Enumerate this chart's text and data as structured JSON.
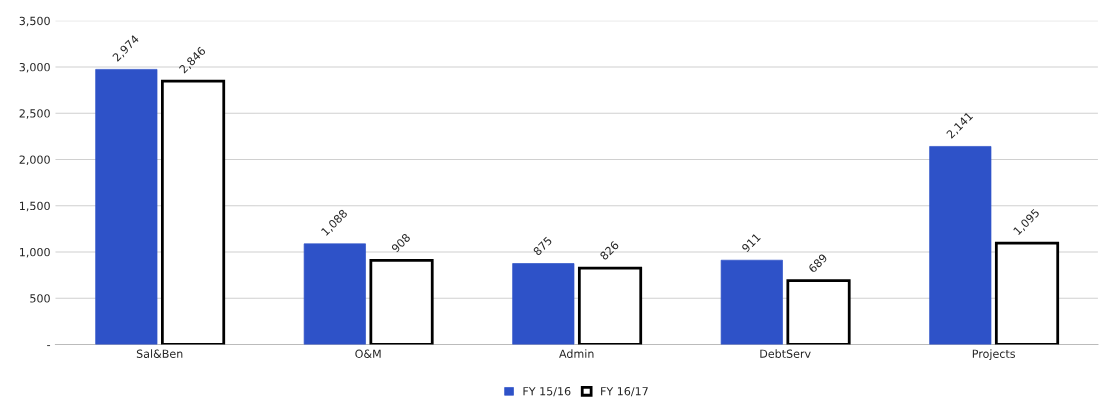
{
  "chart_data": {
    "type": "bar",
    "categories": [
      "Sal&Ben",
      "O&M",
      "Admin",
      "DebtServ",
      "Projects"
    ],
    "series": [
      {
        "name": "FY 15/16",
        "color": "#2e52c8",
        "values": [
          2974,
          1088,
          875,
          911,
          2141
        ],
        "value_labels": [
          "2,974",
          "1,088",
          "875",
          "911",
          "2,141"
        ]
      },
      {
        "name": "FY 16/17",
        "color": "#ffffff",
        "values": [
          2846,
          908,
          826,
          689,
          1095
        ],
        "value_labels": [
          "2,846",
          "908",
          "826",
          "689",
          "1,095"
        ]
      }
    ],
    "ylim": [
      0,
      3500
    ],
    "yticks": [
      {
        "value": 0,
        "label": "-"
      },
      {
        "value": 500,
        "label": "500"
      },
      {
        "value": 1000,
        "label": "1,000"
      },
      {
        "value": 1500,
        "label": "1,500"
      },
      {
        "value": 2000,
        "label": "2,000"
      },
      {
        "value": 2500,
        "label": "2,500"
      },
      {
        "value": 3000,
        "label": "3,000"
      },
      {
        "value": 3500,
        "label": "3,500"
      }
    ],
    "grid": "y",
    "legend": "bottom"
  }
}
